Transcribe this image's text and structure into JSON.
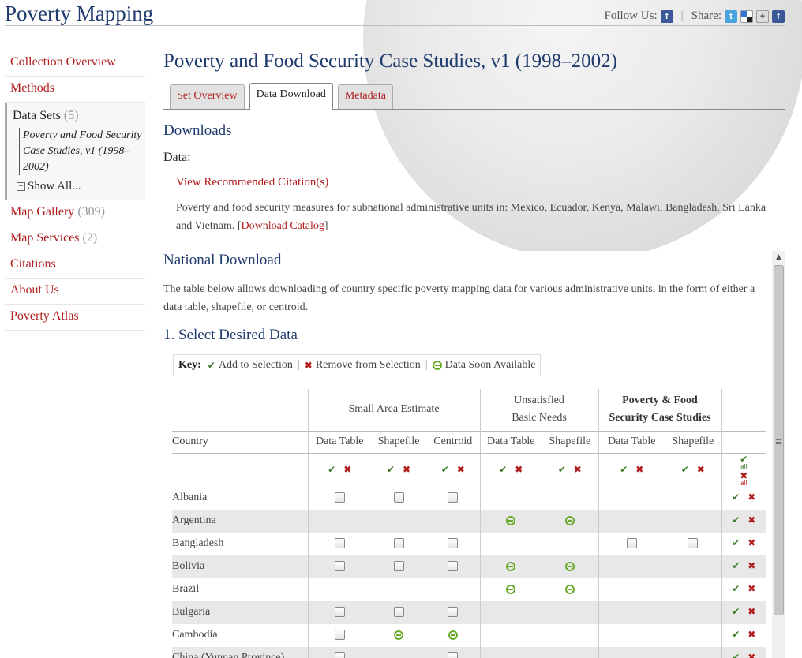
{
  "site_title": "Poverty Mapping",
  "header": {
    "follow_label": "Follow Us:",
    "share_label": "Share:",
    "separator": "|",
    "icons": [
      "facebook-icon",
      "twitter-icon",
      "delicious-icon",
      "google-icon",
      "facebook-icon"
    ]
  },
  "sidebar": {
    "collection_overview": "Collection Overview",
    "methods": "Methods",
    "data_sets": {
      "label": "Data Sets",
      "count": "(5)"
    },
    "current_dataset": "Poverty and Food Security Case Studies, v1 (1998–2002)",
    "show_all": "Show All...",
    "map_gallery": {
      "label": "Map Gallery",
      "count": "(309)"
    },
    "map_services": {
      "label": "Map Services",
      "count": "(2)"
    },
    "citations": "Citations",
    "about_us": "About Us",
    "poverty_atlas": "Poverty Atlas"
  },
  "main": {
    "title": "Poverty and Food Security Case Studies, v1 (1998–2002)",
    "tabs": [
      "Set Overview",
      "Data Download",
      "Metadata"
    ],
    "active_tab": "Data Download",
    "downloads_heading": "Downloads",
    "data_label": "Data:",
    "citation_link": "View Recommended Citation(s)",
    "description_prefix": "Poverty and food security measures for subnational administrative units in: Mexico, Ecuador, Kenya, Malawi, Bangladesh, Sri Lanka and Vietnam. [",
    "download_catalog": "Download Catalog",
    "description_suffix": "]",
    "national_heading": "National Download",
    "national_description": "The table below allows downloading of country specific poverty mapping data for various administrative units, in the form of either a data table, shapefile, or centroid.",
    "select_heading": "1. Select Desired Data"
  },
  "key": {
    "label": "Key:",
    "add": "Add to Selection",
    "remove": "Remove from Selection",
    "soon": "Data Soon Available",
    "separator": "|"
  },
  "table": {
    "groups": {
      "sae": "Small Area Estimate",
      "ubn_line1": "Unsatisfied",
      "ubn_line2": "Basic Needs",
      "pfs_line1": "Poverty & Food",
      "pfs_line2": "Security Case Studies"
    },
    "columns": {
      "country": "Country",
      "sae_table": "Data Table",
      "sae_shape": "Shapefile",
      "sae_centroid": "Centroid",
      "ubn_table": "Data Table",
      "ubn_shape": "Shapefile",
      "pfs_table": "Data Table",
      "pfs_shape": "Shapefile"
    },
    "all_label": "all",
    "rows": [
      {
        "country": "Albania",
        "cells": [
          "cb",
          "cb",
          "cb",
          "",
          "",
          "",
          ""
        ]
      },
      {
        "country": "Argentina",
        "cells": [
          "",
          "",
          "",
          "soon",
          "soon",
          "",
          ""
        ]
      },
      {
        "country": "Bangladesh",
        "cells": [
          "cb",
          "cb",
          "cb",
          "",
          "",
          "cb",
          "cb"
        ]
      },
      {
        "country": "Bolivia",
        "cells": [
          "cb",
          "cb",
          "cb",
          "soon",
          "soon",
          "",
          ""
        ]
      },
      {
        "country": "Brazil",
        "cells": [
          "",
          "",
          "",
          "soon",
          "soon",
          "",
          ""
        ]
      },
      {
        "country": "Bulgaria",
        "cells": [
          "cb",
          "cb",
          "cb",
          "",
          "",
          "",
          ""
        ]
      },
      {
        "country": "Cambodia",
        "cells": [
          "cb",
          "soon",
          "soon",
          "",
          "",
          "",
          ""
        ]
      },
      {
        "country": "China (Yunnan Province)",
        "cells": [
          "cb",
          "",
          "cb",
          "",
          "",
          "",
          ""
        ]
      }
    ]
  }
}
